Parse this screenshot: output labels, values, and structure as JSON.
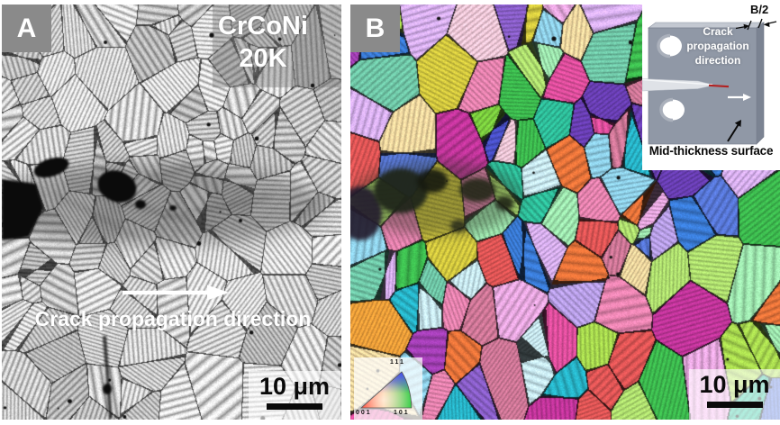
{
  "panel_a": {
    "label": "A",
    "material": "CrCoNi",
    "temperature": "20K",
    "arrow_label": "Crack propagation direction",
    "scale_bar_label": "10 μm"
  },
  "panel_b": {
    "label": "B",
    "scale_bar_label": "10 μm",
    "ipf_legend": {
      "corner_111": "111",
      "corner_001": "001",
      "corner_101": "101"
    },
    "inset": {
      "thickness_label": "B/2",
      "crack_direction_label": "Crack propagation direction",
      "surface_label": "Mid-thickness surface"
    }
  },
  "colors": {
    "panel_label_box": "#8a8a8a",
    "plate_front": "#9098a6",
    "plate_side": "#7b8392",
    "plate_top": "#c3c8d1",
    "crack_tip_red": "#b22222",
    "scale_bar": "#0a0a0a",
    "ipf_001_red": "#ff4030",
    "ipf_101_green": "#35d04a",
    "ipf_111_blue": "#4040ff"
  },
  "ebsd_palette": [
    "#c2359b",
    "#e04f9e",
    "#a33fb5",
    "#6a3fb5",
    "#4a51c9",
    "#3a7bd5",
    "#28b5c9",
    "#2fbf9b",
    "#3dbb4f",
    "#7ccf3f",
    "#a8d94f",
    "#d4c93f",
    "#efa03a",
    "#e8743a",
    "#e05656",
    "#e884b0",
    "#b9a0e8",
    "#8fd0e8",
    "#9fe8b0",
    "#f0c8d8",
    "#c8e8f0",
    "#d8b0f0",
    "#f0d8a0",
    "#70c8a8",
    "#5878d8",
    "#d07898",
    "#b0e070",
    "#e8a8e0",
    "#8a5fc9",
    "#49c9a0"
  ],
  "micrograph_palette": [
    "#f2f2f2",
    "#e4e4e4",
    "#d6d6d6",
    "#cfcfcf",
    "#e9e9e9",
    "#dddddd",
    "#c6c6c6",
    "#efefef",
    "#e0e0e0",
    "#d0d0d0"
  ]
}
